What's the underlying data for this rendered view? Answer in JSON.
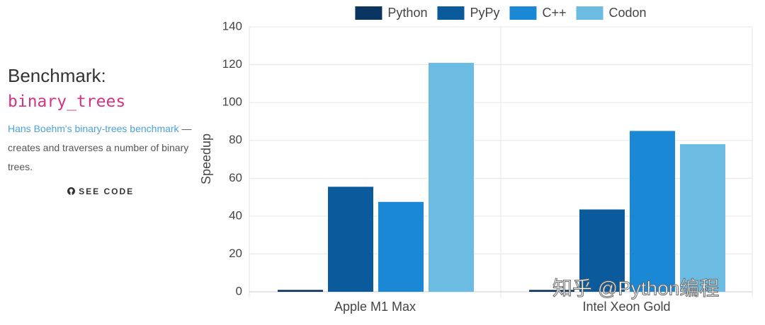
{
  "sidebar": {
    "heading": "Benchmark:",
    "name": "binary_trees",
    "link": "Hans Boehm's binary-trees benchmark",
    "description": "— creates and traverses a number of binary trees.",
    "button": "SEE CODE"
  },
  "chart_data": {
    "type": "bar",
    "y_label": "Speedup",
    "categories": [
      "Apple M1 Max",
      "Intel Xeon Gold"
    ],
    "series": [
      {
        "name": "Python",
        "color": "#0b3460",
        "values": [
          1,
          1
        ]
      },
      {
        "name": "PyPy",
        "color": "#0a5a9c",
        "values": [
          55.5,
          43.5
        ]
      },
      {
        "name": "C++",
        "color": "#1a88d4",
        "values": [
          47.5,
          85
        ]
      },
      {
        "name": "Codon",
        "color": "#6bbbe3",
        "values": [
          121,
          78
        ]
      }
    ],
    "ylim": [
      0,
      140
    ],
    "yticks": [
      0,
      20,
      40,
      60,
      80,
      100,
      120,
      140
    ],
    "grid": true,
    "legend": "top"
  },
  "watermark": "知乎 @Python编程"
}
